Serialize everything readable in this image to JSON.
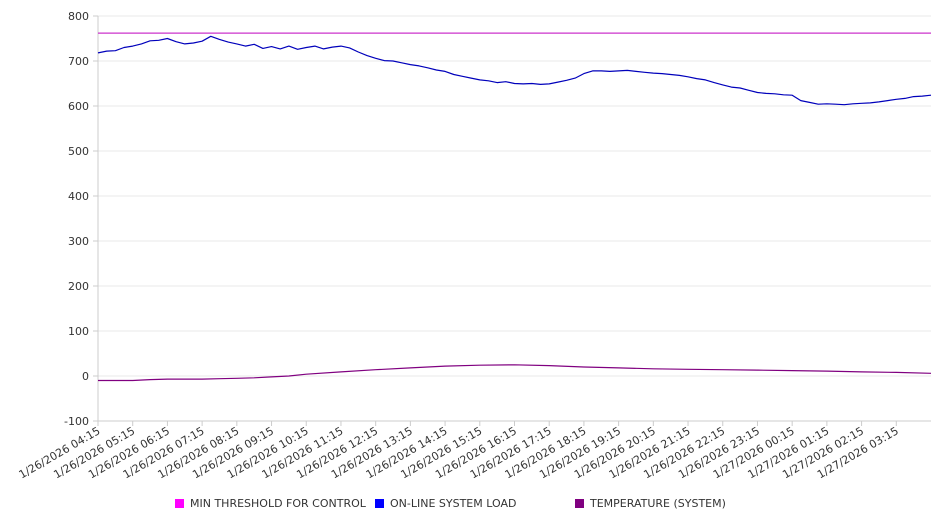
{
  "chart_data": {
    "type": "line",
    "title": "",
    "xlabel": "",
    "ylabel": "",
    "ylim": [
      -100,
      800
    ],
    "yticks": [
      -100,
      0,
      100,
      200,
      300,
      400,
      500,
      600,
      700,
      800
    ],
    "xtick_labels": [
      "1/26/2026 04:15",
      "1/26/2026 05:15",
      "1/26/2026 06:15",
      "1/26/2026 07:15",
      "1/26/2026 08:15",
      "1/26/2026 09:15",
      "1/26/2026 10:15",
      "1/26/2026 11:15",
      "1/26/2026 12:15",
      "1/26/2026 13:15",
      "1/26/2026 14:15",
      "1/26/2026 15:15",
      "1/26/2026 16:15",
      "1/26/2026 17:15",
      "1/26/2026 18:15",
      "1/26/2026 19:15",
      "1/26/2026 20:15",
      "1/26/2026 21:15",
      "1/26/2026 22:15",
      "1/26/2026 23:15",
      "1/27/2026 00:15",
      "1/27/2026 01:15",
      "1/27/2026 02:15",
      "1/27/2026 03:15"
    ],
    "grid": "horizontal",
    "legend_position": "bottom",
    "series": [
      {
        "name": "MIN THRESHOLD FOR CONTROL",
        "color": "#cc33cc",
        "legend_color": "#ff00ff",
        "points": [
          [
            0,
            762
          ],
          [
            24,
            762
          ]
        ]
      },
      {
        "name": "ON-LINE SYSTEM LOAD",
        "color": "#0000bb",
        "legend_color": "#0000ff",
        "points": [
          [
            0,
            718
          ],
          [
            0.25,
            722
          ],
          [
            0.5,
            723
          ],
          [
            0.75,
            730
          ],
          [
            1,
            733
          ],
          [
            1.25,
            738
          ],
          [
            1.5,
            745
          ],
          [
            1.75,
            746
          ],
          [
            2,
            750
          ],
          [
            2.25,
            743
          ],
          [
            2.5,
            738
          ],
          [
            2.75,
            740
          ],
          [
            3,
            744
          ],
          [
            3.25,
            755
          ],
          [
            3.5,
            748
          ],
          [
            3.75,
            742
          ],
          [
            4,
            738
          ],
          [
            4.25,
            733
          ],
          [
            4.5,
            737
          ],
          [
            4.75,
            728
          ],
          [
            5,
            732
          ],
          [
            5.25,
            727
          ],
          [
            5.5,
            733
          ],
          [
            5.75,
            726
          ],
          [
            6,
            730
          ],
          [
            6.25,
            733
          ],
          [
            6.5,
            727
          ],
          [
            6.75,
            731
          ],
          [
            7,
            733
          ],
          [
            7.25,
            729
          ],
          [
            7.5,
            720
          ],
          [
            7.75,
            712
          ],
          [
            8,
            706
          ],
          [
            8.25,
            701
          ],
          [
            8.5,
            700
          ],
          [
            8.75,
            696
          ],
          [
            9,
            692
          ],
          [
            9.25,
            689
          ],
          [
            9.5,
            685
          ],
          [
            9.75,
            680
          ],
          [
            10,
            677
          ],
          [
            10.25,
            670
          ],
          [
            10.5,
            666
          ],
          [
            10.75,
            662
          ],
          [
            11,
            658
          ],
          [
            11.25,
            656
          ],
          [
            11.5,
            652
          ],
          [
            11.75,
            654
          ],
          [
            12,
            650
          ],
          [
            12.25,
            649
          ],
          [
            12.5,
            650
          ],
          [
            12.75,
            648
          ],
          [
            13,
            649
          ],
          [
            13.25,
            653
          ],
          [
            13.5,
            657
          ],
          [
            13.75,
            662
          ],
          [
            14,
            672
          ],
          [
            14.25,
            678
          ],
          [
            14.5,
            678
          ],
          [
            14.75,
            677
          ],
          [
            15,
            678
          ],
          [
            15.25,
            679
          ],
          [
            15.5,
            677
          ],
          [
            15.75,
            675
          ],
          [
            16,
            673
          ],
          [
            16.25,
            672
          ],
          [
            16.5,
            670
          ],
          [
            16.75,
            668
          ],
          [
            17,
            665
          ],
          [
            17.25,
            661
          ],
          [
            17.5,
            658
          ],
          [
            17.75,
            652
          ],
          [
            18,
            647
          ],
          [
            18.25,
            642
          ],
          [
            18.5,
            640
          ],
          [
            18.75,
            635
          ],
          [
            19,
            630
          ],
          [
            19.25,
            628
          ],
          [
            19.5,
            627
          ],
          [
            19.75,
            625
          ],
          [
            20,
            624
          ],
          [
            20.25,
            612
          ],
          [
            20.5,
            608
          ],
          [
            20.75,
            604
          ],
          [
            21,
            605
          ],
          [
            21.25,
            604
          ],
          [
            21.5,
            603
          ],
          [
            21.75,
            605
          ],
          [
            22,
            606
          ],
          [
            22.25,
            607
          ],
          [
            22.5,
            609
          ],
          [
            22.75,
            612
          ],
          [
            23,
            615
          ],
          [
            23.25,
            617
          ],
          [
            23.5,
            621
          ],
          [
            23.75,
            622
          ],
          [
            24,
            624
          ]
        ]
      },
      {
        "name": "TEMPERATURE (SYSTEM)",
        "color": "#800080",
        "legend_color": "#800080",
        "points": [
          [
            0,
            -10
          ],
          [
            1,
            -10
          ],
          [
            1.5,
            -8
          ],
          [
            2,
            -7
          ],
          [
            3,
            -7
          ],
          [
            3.5,
            -6
          ],
          [
            4,
            -5
          ],
          [
            4.5,
            -4
          ],
          [
            5,
            -2
          ],
          [
            5.5,
            0
          ],
          [
            6,
            4
          ],
          [
            7,
            9
          ],
          [
            8,
            14
          ],
          [
            9,
            18
          ],
          [
            10,
            22
          ],
          [
            11,
            24
          ],
          [
            12,
            25
          ],
          [
            13,
            23
          ],
          [
            14,
            20
          ],
          [
            15,
            18
          ],
          [
            16,
            16
          ],
          [
            17,
            15
          ],
          [
            18,
            14
          ],
          [
            19,
            13
          ],
          [
            20,
            12
          ],
          [
            21,
            11
          ],
          [
            22,
            9
          ],
          [
            23,
            8
          ],
          [
            24,
            6
          ]
        ]
      }
    ]
  }
}
